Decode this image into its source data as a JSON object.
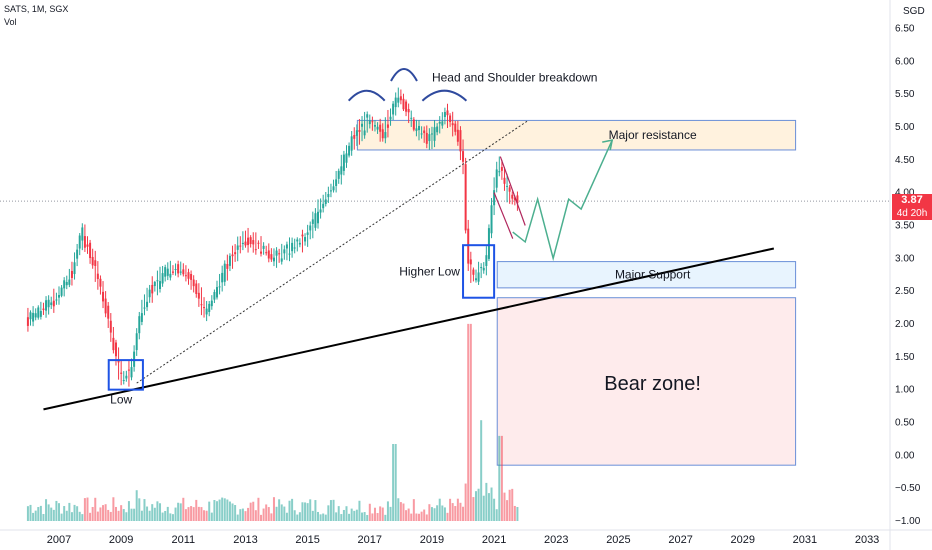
{
  "header": {
    "symbol_line": "SATS, 1M, SGX",
    "vol_label": "Vol"
  },
  "currency": "SGD",
  "last_price": {
    "value": "3.87",
    "countdown": "4d 20h"
  },
  "chart_data": {
    "type": "candlestick",
    "title": "",
    "x_ticks": [
      "2007",
      "2009",
      "2011",
      "2013",
      "2015",
      "2017",
      "2019",
      "2021",
      "2023",
      "2025",
      "2027",
      "2029",
      "2031",
      "2033"
    ],
    "y_ticks": [
      "6.50",
      "6.00",
      "5.50",
      "5.00",
      "4.50",
      "4.00",
      "3.50",
      "3.00",
      "2.50",
      "2.00",
      "1.50",
      "1.00",
      "0.50",
      "0.00",
      "−0.50",
      "−1.00"
    ],
    "y_range": [
      -1.0,
      6.5
    ],
    "x_range": [
      2006.0,
      2034.0
    ],
    "price_path": [
      [
        2006.0,
        2.05
      ],
      [
        2006.6,
        2.25
      ],
      [
        2007.0,
        2.4
      ],
      [
        2007.5,
        2.8
      ],
      [
        2007.8,
        3.4
      ],
      [
        2008.2,
        2.9
      ],
      [
        2008.6,
        2.2
      ],
      [
        2008.9,
        1.5
      ],
      [
        2009.1,
        1.15
      ],
      [
        2009.4,
        1.3
      ],
      [
        2009.7,
        2.2
      ],
      [
        2010.0,
        2.5
      ],
      [
        2010.5,
        2.8
      ],
      [
        2011.0,
        2.85
      ],
      [
        2011.4,
        2.6
      ],
      [
        2011.8,
        2.15
      ],
      [
        2012.2,
        2.6
      ],
      [
        2012.6,
        3.0
      ],
      [
        2013.0,
        3.3
      ],
      [
        2013.5,
        3.2
      ],
      [
        2014.0,
        3.0
      ],
      [
        2014.5,
        3.15
      ],
      [
        2015.0,
        3.3
      ],
      [
        2015.5,
        3.8
      ],
      [
        2016.0,
        4.2
      ],
      [
        2016.5,
        4.8
      ],
      [
        2017.0,
        5.1
      ],
      [
        2017.5,
        4.9
      ],
      [
        2018.0,
        5.5
      ],
      [
        2018.5,
        5.0
      ],
      [
        2019.0,
        4.8
      ],
      [
        2019.5,
        5.2
      ],
      [
        2019.9,
        4.9
      ],
      [
        2020.1,
        4.4
      ],
      [
        2020.2,
        3.0
      ],
      [
        2020.4,
        2.7
      ],
      [
        2020.8,
        2.9
      ],
      [
        2021.0,
        3.8
      ],
      [
        2021.2,
        4.5
      ],
      [
        2021.5,
        4.0
      ],
      [
        2021.7,
        3.87
      ]
    ],
    "volume_levels": [
      0.05,
      0.12,
      0.22,
      0.15,
      0.55,
      0.88,
      0.45,
      0.38
    ],
    "volume_years": [
      2006.5,
      2008.5,
      2009.5,
      2012.0,
      2017.8,
      2020.2,
      2020.6,
      2021.2
    ],
    "annotations": {
      "head_shoulder": "Head and Shoulder breakdown",
      "major_resistance": "Major resistance",
      "major_support": "Major Support",
      "higher_low": "Higher Low",
      "low": "Low",
      "bear_zone": "Bear zone!"
    },
    "zones": {
      "resistance": [
        4.65,
        5.1
      ],
      "support": [
        2.55,
        2.95
      ],
      "bear": [
        -0.15,
        2.4
      ]
    },
    "projection_path": [
      [
        2021.6,
        3.4
      ],
      [
        2022.0,
        3.25
      ],
      [
        2022.4,
        3.9
      ],
      [
        2022.9,
        3.0
      ],
      [
        2023.4,
        3.9
      ],
      [
        2023.8,
        3.75
      ],
      [
        2024.8,
        4.8
      ]
    ],
    "support_trendline": [
      [
        2006.5,
        0.7
      ],
      [
        2030.0,
        3.15
      ]
    ],
    "dotted_trendline": [
      [
        2009.5,
        1.1
      ],
      [
        2022.1,
        5.1
      ]
    ],
    "red_falling_lines": [
      [
        [
          2021.2,
          4.55
        ],
        [
          2022.0,
          3.5
        ]
      ],
      [
        [
          2021.0,
          4.0
        ],
        [
          2021.6,
          3.3
        ]
      ]
    ],
    "colors": {
      "up": "#26a69a",
      "down": "#f23645",
      "blue_box": "#1e53e5",
      "projection": "#4caf8f"
    }
  }
}
